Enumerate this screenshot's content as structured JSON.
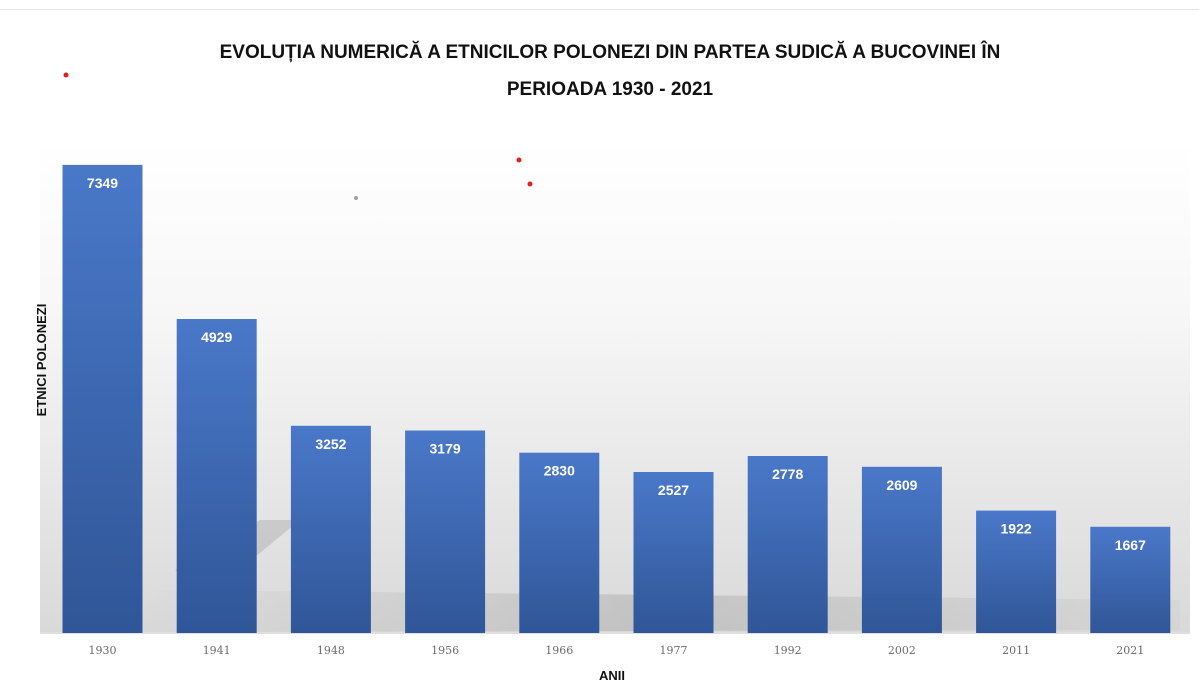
{
  "chart_data": {
    "type": "bar",
    "title_lines": [
      "EVOLUȚIA NUMERICĂ A ETNICILOR POLONEZI DIN PARTEA SUDICĂ A BUCOVINEI ÎN",
      "PERIOADA 1930 - 2021"
    ],
    "xlabel": "ANII",
    "ylabel": "ETNICI POLONEZI",
    "categories": [
      "1930",
      "1941",
      "1948",
      "1956",
      "1966",
      "1977",
      "1992",
      "2002",
      "2011",
      "2021"
    ],
    "values": [
      7349,
      4929,
      3252,
      3179,
      2830,
      2527,
      2778,
      2609,
      1922,
      1667
    ],
    "data_labels": true,
    "grid": false,
    "legend": "none",
    "colors": {
      "bar_top": "#4a78c9",
      "bar_bottom": "#2f5697",
      "background_top": "#ffffff",
      "background_bottom": "#dcdcdc",
      "axis_line": "#bfbfbf"
    }
  }
}
